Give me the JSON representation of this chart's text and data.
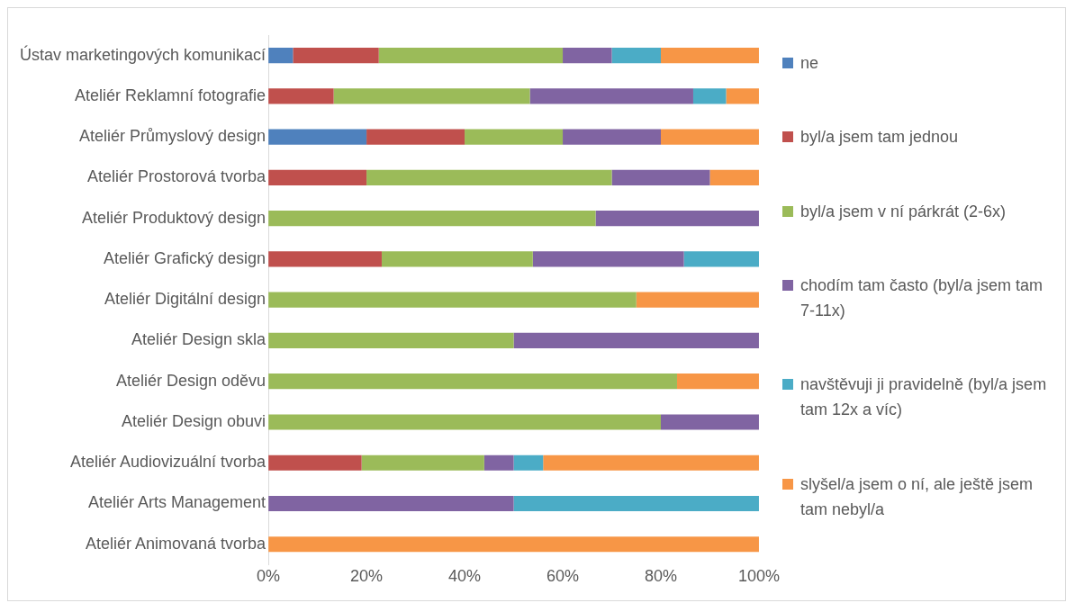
{
  "chart_data": {
    "type": "bar",
    "orientation": "horizontal",
    "stacked": true,
    "legend": "right",
    "grid": false,
    "categories": [
      "Ústav marketingových komunikací",
      "Ateliér Reklamní fotografie",
      "Ateliér Průmyslový design",
      "Ateliér Prostorová tvorba",
      "Ateliér Produktový design",
      "Ateliér Grafický design",
      "Ateliér Digitální design",
      "Ateliér Design skla",
      "Ateliér Design oděvu",
      "Ateliér Design obuvi",
      "Ateliér Audiovizuální tvorba",
      "Ateliér Arts Management",
      "Ateliér Animovaná tvorba"
    ],
    "xlim": [
      0,
      100
    ],
    "xticks": [
      {
        "value": 0,
        "label": "0%"
      },
      {
        "value": 20,
        "label": "20%"
      },
      {
        "value": 40,
        "label": "40%"
      },
      {
        "value": 60,
        "label": "60%"
      },
      {
        "value": 80,
        "label": "80%"
      },
      {
        "value": 100,
        "label": "100%"
      }
    ],
    "series": [
      {
        "name": "ne",
        "color": "#4f81bd",
        "values": [
          5,
          null,
          20,
          null,
          null,
          null,
          null,
          null,
          null,
          null,
          null,
          null,
          null
        ]
      },
      {
        "name": "byl/a jsem tam jednou",
        "color": "#c0504d",
        "values": [
          17.5,
          13.3,
          20,
          20,
          null,
          23.1,
          null,
          null,
          null,
          null,
          19,
          null,
          null
        ]
      },
      {
        "name": "byl/a jsem v ní párkrát (2-6x)",
        "color": "#9bbb59",
        "values": [
          37.5,
          40,
          20,
          50,
          66.7,
          30.8,
          75,
          50,
          83.3,
          80,
          25,
          null,
          null
        ]
      },
      {
        "name": "chodím tam často (byl/a jsem tam 7-11x)",
        "color": "#8064a2",
        "values": [
          10,
          33.3,
          20,
          20,
          33.3,
          30.8,
          null,
          50,
          null,
          20,
          6,
          50,
          null
        ]
      },
      {
        "name": "navštěvuji ji pravidelně (byl/a jsem tam 12x a víc)",
        "color": "#4bacc6",
        "values": [
          10,
          6.7,
          null,
          null,
          null,
          15.4,
          null,
          null,
          null,
          null,
          6,
          50,
          null
        ]
      },
      {
        "name": "slyšel/a jsem o ní, ale ještě jsem tam nebyl/a",
        "color": "#f79646",
        "values": [
          20,
          6.7,
          20,
          10,
          null,
          null,
          25,
          null,
          16.7,
          null,
          44,
          null,
          100
        ]
      }
    ]
  }
}
